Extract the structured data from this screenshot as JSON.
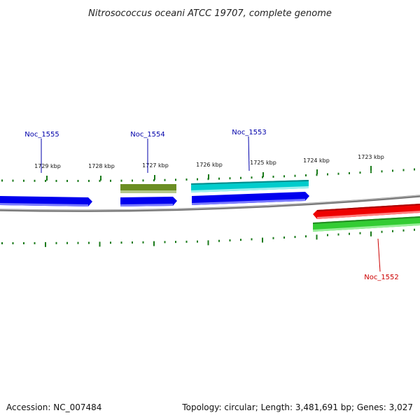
{
  "title": "Nitrosococcus oceani ATCC 19707, complete genome",
  "footer": {
    "accession": "Accession: NC_007484",
    "summary": "Topology: circular; Length: 3,481,691 bp; Genes: 3,027"
  },
  "ticks": [
    {
      "label": "1729 kbp"
    },
    {
      "label": "1728 kbp"
    },
    {
      "label": "1727 kbp"
    },
    {
      "label": "1726 kbp"
    },
    {
      "label": "1725 kbp"
    },
    {
      "label": "1724 kbp"
    },
    {
      "label": "1723 kbp"
    }
  ],
  "gene_labels": [
    {
      "name": "Noc_1555",
      "color": "#0000aa"
    },
    {
      "name": "Noc_1554",
      "color": "#0000aa"
    },
    {
      "name": "Noc_1553",
      "color": "#0000aa"
    },
    {
      "name": "Noc_1552",
      "color": "#cc0000"
    }
  ],
  "colors": {
    "backbone": "#777777",
    "tick": "#1a7a1a",
    "blue_gene": "#0000ee",
    "olive_gene": "#6b8e23",
    "cyan_gene": "#00cccc",
    "red_gene": "#ee0000",
    "green_gene": "#33cc33"
  }
}
